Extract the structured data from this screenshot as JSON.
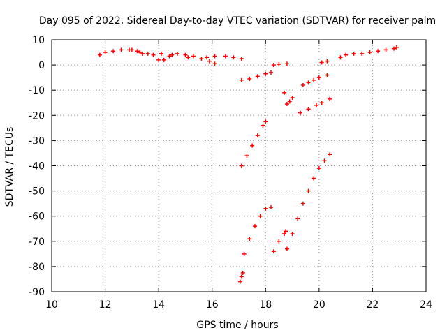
{
  "chart_data": {
    "type": "scatter",
    "title": "Day 095 of 2022, Sidereal Day-to-day VTEC variation (SDTVAR) for receiver palm",
    "xlabel": "GPS time / hours",
    "ylabel": "SDTVAR / TECUs",
    "xlim": [
      10,
      24
    ],
    "ylim": [
      -90,
      10
    ],
    "xticks": [
      "10",
      "12",
      "14",
      "16",
      "18",
      "20",
      "22",
      "24"
    ],
    "yticks": [
      "10",
      "0",
      "-10",
      "-20",
      "-30",
      "-40",
      "-50",
      "-60",
      "-70",
      "-80",
      "-90"
    ],
    "grid": true,
    "marker": "+",
    "color": "#ff0000",
    "series": [
      {
        "points": [
          [
            11.8,
            4.0
          ],
          [
            12.0,
            5.0
          ],
          [
            12.3,
            5.5
          ],
          [
            12.6,
            6.0
          ],
          [
            12.9,
            6.0
          ],
          [
            13.2,
            5.5
          ],
          [
            13.4,
            4.5
          ],
          [
            13.6,
            4.5
          ],
          [
            13.8,
            4.0
          ],
          [
            14.0,
            2.0
          ],
          [
            14.2,
            2.0
          ],
          [
            14.4,
            3.5
          ],
          [
            14.7,
            4.5
          ],
          [
            15.0,
            4.0
          ],
          [
            15.3,
            3.5
          ],
          [
            15.6,
            2.5
          ],
          [
            15.9,
            1.5
          ],
          [
            16.1,
            0.5
          ],
          [
            16.1,
            3.5
          ],
          [
            16.5,
            3.5
          ],
          [
            16.8,
            3.0
          ],
          [
            17.1,
            2.5
          ],
          [
            13.0,
            6.0
          ],
          [
            13.3,
            5.0
          ],
          [
            14.1,
            4.5
          ],
          [
            14.5,
            4.0
          ],
          [
            15.1,
            3.0
          ],
          [
            15.8,
            3.0
          ],
          [
            17.1,
            -6.0
          ],
          [
            17.4,
            -5.5
          ],
          [
            17.7,
            -4.5
          ],
          [
            18.0,
            -3.5
          ],
          [
            18.2,
            -3.0
          ],
          [
            18.3,
            0.0
          ],
          [
            18.5,
            0.3
          ],
          [
            18.8,
            0.5
          ],
          [
            18.7,
            -11.0
          ],
          [
            18.8,
            -15.5
          ],
          [
            18.9,
            -14.5
          ],
          [
            19.0,
            -13.0
          ],
          [
            19.4,
            -8.0
          ],
          [
            19.6,
            -7.0
          ],
          [
            19.8,
            -6.0
          ],
          [
            20.0,
            -5.0
          ],
          [
            20.3,
            -4.0
          ],
          [
            19.3,
            -19.0
          ],
          [
            19.6,
            -17.5
          ],
          [
            19.9,
            -16.0
          ],
          [
            20.1,
            -15.0
          ],
          [
            20.4,
            -13.5
          ],
          [
            20.1,
            1.0
          ],
          [
            20.3,
            1.5
          ],
          [
            20.8,
            3.0
          ],
          [
            21.0,
            4.0
          ],
          [
            21.3,
            4.5
          ],
          [
            21.6,
            4.5
          ],
          [
            21.9,
            5.0
          ],
          [
            22.2,
            5.5
          ],
          [
            22.5,
            6.0
          ],
          [
            22.8,
            6.5
          ],
          [
            22.9,
            7.0
          ],
          [
            17.1,
            -40.0
          ],
          [
            17.3,
            -36.0
          ],
          [
            17.5,
            -32.0
          ],
          [
            17.7,
            -28.0
          ],
          [
            17.9,
            -24.0
          ],
          [
            18.0,
            -22.5
          ],
          [
            17.2,
            -75.0
          ],
          [
            17.4,
            -69.0
          ],
          [
            17.6,
            -64.0
          ],
          [
            17.8,
            -60.0
          ],
          [
            18.0,
            -57.0
          ],
          [
            18.2,
            -56.5
          ],
          [
            17.05,
            -86.0
          ],
          [
            17.1,
            -84.0
          ],
          [
            17.15,
            -82.5
          ],
          [
            18.3,
            -74.0
          ],
          [
            18.5,
            -70.0
          ],
          [
            18.7,
            -67.0
          ],
          [
            18.75,
            -66.0
          ],
          [
            18.8,
            -73.0
          ],
          [
            19.0,
            -67.0
          ],
          [
            19.2,
            -61.0
          ],
          [
            19.4,
            -55.0
          ],
          [
            19.6,
            -50.0
          ],
          [
            19.8,
            -45.0
          ],
          [
            20.0,
            -41.0
          ],
          [
            20.2,
            -38.0
          ],
          [
            20.4,
            -35.5
          ]
        ]
      }
    ]
  }
}
